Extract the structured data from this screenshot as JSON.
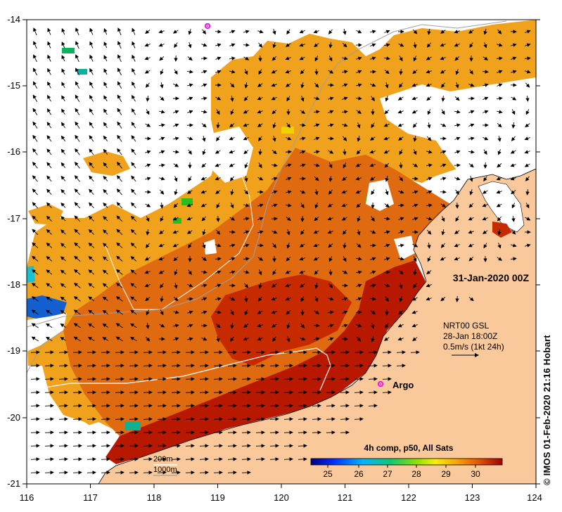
{
  "map": {
    "date_label": "31-Jan-2020 00Z",
    "current_info": {
      "line1": "NRT00 GSL",
      "line2": "28-Jan 18:00Z",
      "line3": "0.5m/s (1kt 24h)"
    },
    "argo_label": "Argo",
    "isobaths": {
      "shallow": "200m",
      "deep": "1000m"
    },
    "credit": "© IMOS 01-Feb-2020 21:16 Hobart",
    "colorbar": {
      "title": "4h comp, p50, All Sats",
      "ticks": [
        "25",
        "26",
        "27",
        "28",
        "29",
        "30"
      ]
    },
    "axes": {
      "lon_ticks": [
        "116",
        "117",
        "118",
        "119",
        "120",
        "121",
        "122",
        "123",
        "124"
      ],
      "lat_ticks": [
        "-14",
        "-15",
        "-16",
        "-17",
        "-18",
        "-19",
        "-20",
        "-21"
      ]
    },
    "colors": {
      "land": "#f9c89b",
      "sst_warm": "#f0a21c",
      "sst_hot": "#b81800",
      "argo_marker": "#ff00ff"
    }
  }
}
